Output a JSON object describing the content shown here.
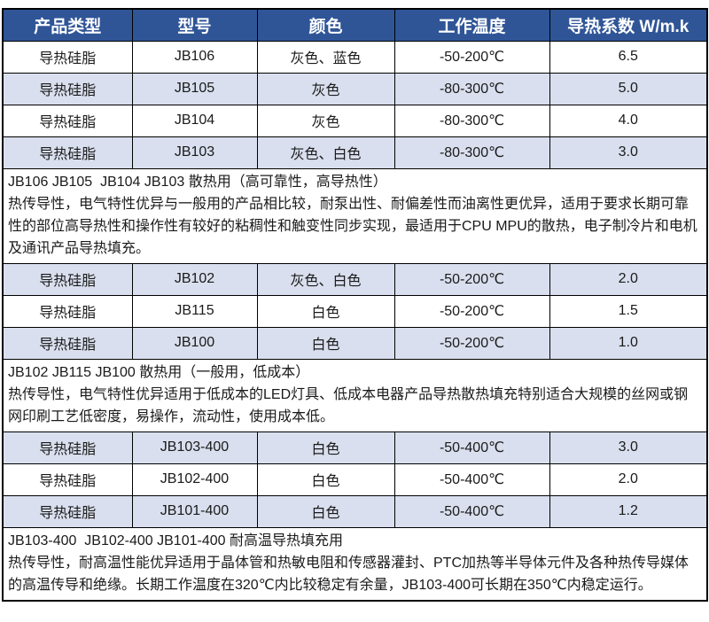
{
  "colors": {
    "header_bg": "#2F5597",
    "shaded_row_bg": "#D9DFEE",
    "border": "#000000",
    "header_text": "#FFFFFF"
  },
  "table": {
    "headers": [
      "产品类型",
      "型号",
      "颜色",
      "工作温度",
      "导热系数 W/m.k"
    ],
    "sections": [
      {
        "rows": [
          {
            "cells": [
              "导热硅脂",
              "JB106",
              "灰色、蓝色",
              "-50-200℃",
              "6.5"
            ],
            "shaded": false
          },
          {
            "cells": [
              "导热硅脂",
              "JB105",
              "灰色",
              "-80-300℃",
              "5.0"
            ],
            "shaded": true
          },
          {
            "cells": [
              "导热硅脂",
              "JB104",
              "灰色",
              "-80-300℃",
              "4.0"
            ],
            "shaded": false
          },
          {
            "cells": [
              "导热硅脂",
              "JB103",
              "灰色、白色",
              "-80-300℃",
              "3.0"
            ],
            "shaded": true
          }
        ],
        "note_title": "JB106 JB105  JB104 JB103 散热用（高可靠性，高导热性）",
        "note_body": "热传导性，电气特性优异与一般用的产品相比较，耐泵出性、耐偏差性而油离性更优异，适用于要求长期可靠性的部位高导热性和操作性有较好的粘稠性和触变性同步实现，最适用于CPU MPU的散热，电子制冷片和电机及通讯产品导热填充。"
      },
      {
        "rows": [
          {
            "cells": [
              "导热硅脂",
              "JB102",
              "灰色、白色",
              "-50-200℃",
              "2.0"
            ],
            "shaded": true
          },
          {
            "cells": [
              "导热硅脂",
              "JB115",
              "白色",
              "-50-200℃",
              "1.5"
            ],
            "shaded": false
          },
          {
            "cells": [
              "导热硅脂",
              "JB100",
              "白色",
              "-50-200℃",
              "1.0"
            ],
            "shaded": true
          }
        ],
        "note_title": "JB102 JB115 JB100 散热用（一般用，低成本）",
        "note_body": "热传导性，电气特性优异适用于低成本的LED灯具、低成本电器产品导热散热填充特别适合大规模的丝网或钢网印刷工艺低密度，易操作，流动性，使用成本低。"
      },
      {
        "rows": [
          {
            "cells": [
              "导热硅脂",
              "JB103-400",
              "白色",
              "-50-400℃",
              "3.0"
            ],
            "shaded": true
          },
          {
            "cells": [
              "导热硅脂",
              "JB102-400",
              "白色",
              "-50-400℃",
              "2.0"
            ],
            "shaded": false
          },
          {
            "cells": [
              "导热硅脂",
              "JB101-400",
              "白色",
              "-50-400℃",
              "1.2"
            ],
            "shaded": true
          }
        ],
        "note_title": "JB103-400  JB102-400 JB101-400 耐高温导热填充用",
        "note_body": "热传导性，耐高温性能优异适用于晶体管和热敏电阻和传感器灌封、PTC加热等半导体元件及各种热传导媒体的高温传导和绝缘。长期工作温度在320℃内比较稳定有余量，JB103-400可长期在350℃内稳定运行。"
      }
    ]
  }
}
